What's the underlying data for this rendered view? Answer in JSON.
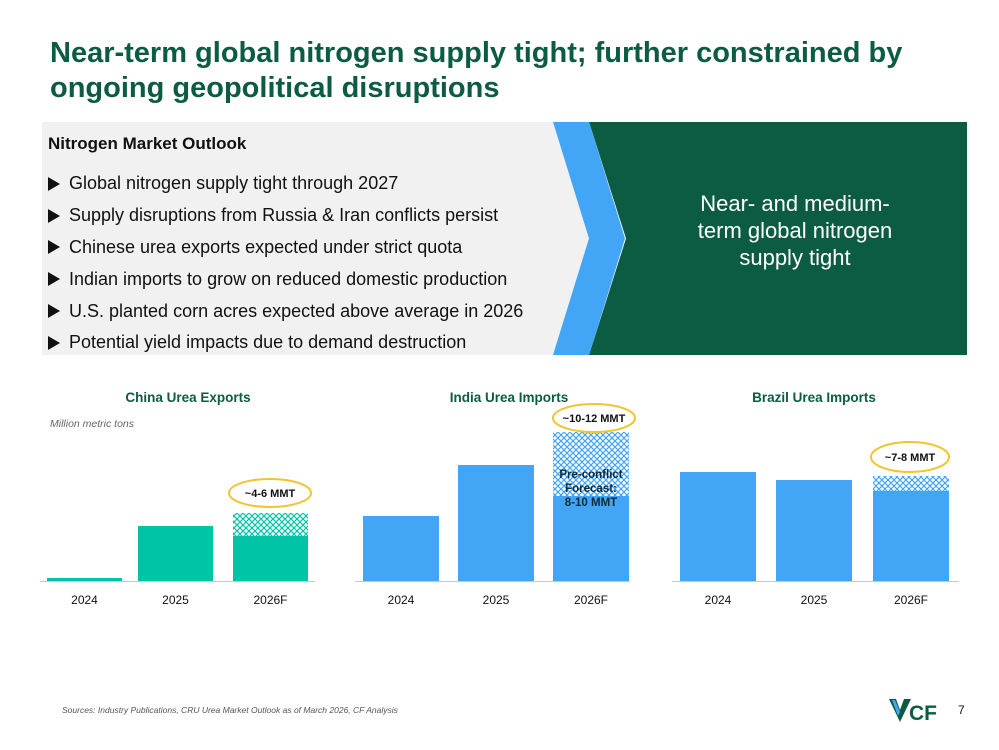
{
  "title": "Near-term global nitrogen supply tight; further constrained by ongoing geopolitical disruptions",
  "outlook": {
    "heading": "Nitrogen Market Outlook",
    "bullets": [
      "Global nitrogen supply tight through 2027",
      "Supply disruptions from Russia & Iran conflicts persist",
      "Chinese urea exports expected under strict quota",
      "Indian imports to grow on reduced domestic production",
      "U.S. planted corn acres expected above average in 2026",
      "Potential yield impacts due to demand destruction"
    ]
  },
  "callout": "Near- and medium-term global nitrogen supply tight",
  "colors": {
    "brand_green": "#0c5b43",
    "accent_blue": "#42a5f5",
    "teal": "#00c4a6",
    "bar_blue": "#42a5f5",
    "oval_yellow": "#f0c52f"
  },
  "units_label": "Million metric tons",
  "chart_data": [
    {
      "type": "bar",
      "title": "China Urea Exports",
      "categories": [
        "2024",
        "2025",
        "2026F"
      ],
      "values": [
        0.3,
        5.5,
        4.5
      ],
      "range_top": 6.8,
      "ylim": [
        0,
        16
      ],
      "color": "#00c4a6",
      "annotation": "~4-6 MMT"
    },
    {
      "type": "bar",
      "title": "India Urea Imports",
      "categories": [
        "2024",
        "2025",
        "2026F"
      ],
      "values": [
        6.5,
        11.6,
        8.5
      ],
      "range_top": 14.9,
      "ylim": [
        0,
        16
      ],
      "color": "#42a5f5",
      "annotation": "~10-12 MMT",
      "bar_note": "Pre-conflict Forecast: 8-10 MMT"
    },
    {
      "type": "bar",
      "title": "Brazil Urea Imports",
      "categories": [
        "2024",
        "2025",
        "2026F"
      ],
      "values": [
        10.9,
        10.1,
        9.0
      ],
      "range_top": 10.5,
      "ylim": [
        0,
        16
      ],
      "color": "#42a5f5",
      "annotation": "~7-8 MMT"
    }
  ],
  "footer": {
    "source": "Sources: Industry Publications, CRU Urea Market Outlook as of March 2026, CF Analysis",
    "logo_text": "CF",
    "page_number": "7"
  }
}
